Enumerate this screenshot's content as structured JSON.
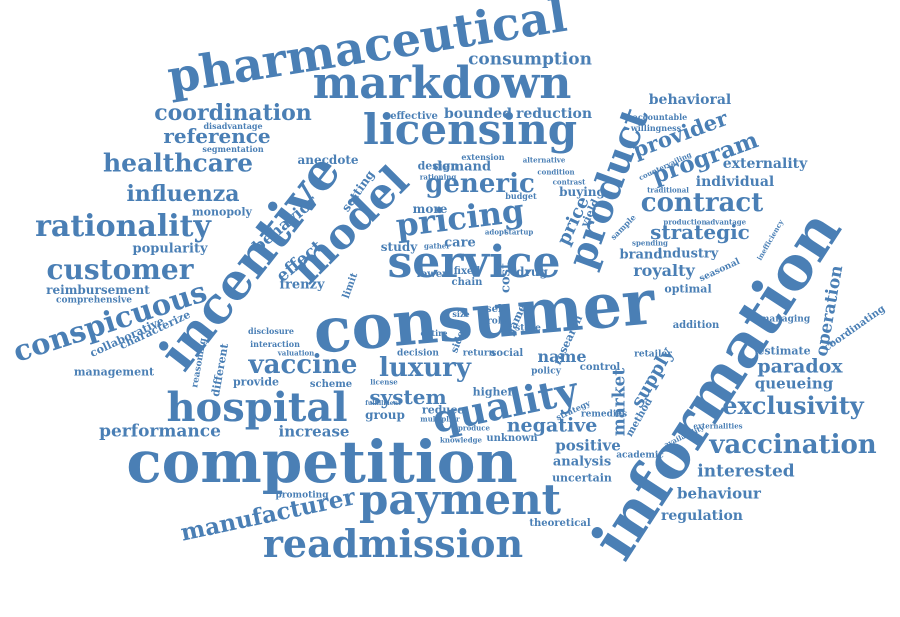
{
  "words": [
    "pharmaceutical",
    "markdown",
    "licensing",
    "consumption",
    "coordination",
    "reference",
    "healthcare",
    "influenza",
    "rationality",
    "customer",
    "conspicuous",
    "incentive",
    "model",
    "generic",
    "pricing",
    "service",
    "product",
    "provider",
    "program",
    "contract",
    "strategic",
    "behavioral",
    "externality",
    "individual",
    "royalty",
    "information",
    "consumer",
    "competition",
    "hospital",
    "vaccine",
    "luxury",
    "quality",
    "system",
    "payment",
    "readmission",
    "manufacturer",
    "performance",
    "increase",
    "negative",
    "positive",
    "market",
    "supply",
    "paradox",
    "exclusivity",
    "vaccination",
    "interested",
    "behaviour",
    "regulation",
    "queueing",
    "operation",
    "estimate",
    "managing",
    "coordinating",
    "brand",
    "industry",
    "optimal",
    "name",
    "analysis",
    "uncertain",
    "theoretical",
    "bounded",
    "reduction",
    "effective",
    "demand",
    "design",
    "buying",
    "popularity",
    "monopoly",
    "reimbursement",
    "comprehensive",
    "collaborative",
    "characterize",
    "management",
    "different",
    "provide",
    "reasoning",
    "anecdote",
    "behavior",
    "effect",
    "frenzy",
    "limit",
    "care",
    "cost",
    "fixed",
    "chain",
    "self",
    "role",
    "drug",
    "store",
    "social",
    "return",
    "decision",
    "group",
    "reduce",
    "unknown",
    "knowledge",
    "promoting",
    "scheme",
    "license",
    "higher",
    "policy",
    "control",
    "method",
    "academic",
    "remedies",
    "retailer",
    "addition",
    "seasonal",
    "sample",
    "study",
    "more",
    "setting",
    "disadvantage",
    "segmentation",
    "accountable",
    "willingness",
    "countervailing",
    "traditional",
    "production",
    "advantage",
    "inefficiency",
    "spending",
    "gather",
    "adopt",
    "startup",
    "budget",
    "condition",
    "alternative",
    "extension",
    "rationing",
    "lower",
    "price",
    "yield",
    "entire",
    "size",
    "research",
    "game",
    "sided",
    "interaction",
    "disclosure",
    "valuation",
    "strategy",
    "externalities",
    "availability",
    "produce",
    "multiplier",
    "fulfillment",
    "contrast",
    "demand",
    "increase",
    "estimate"
  ],
  "palette": {
    "text": "#4a7fb5",
    "background": "#ffffff"
  }
}
